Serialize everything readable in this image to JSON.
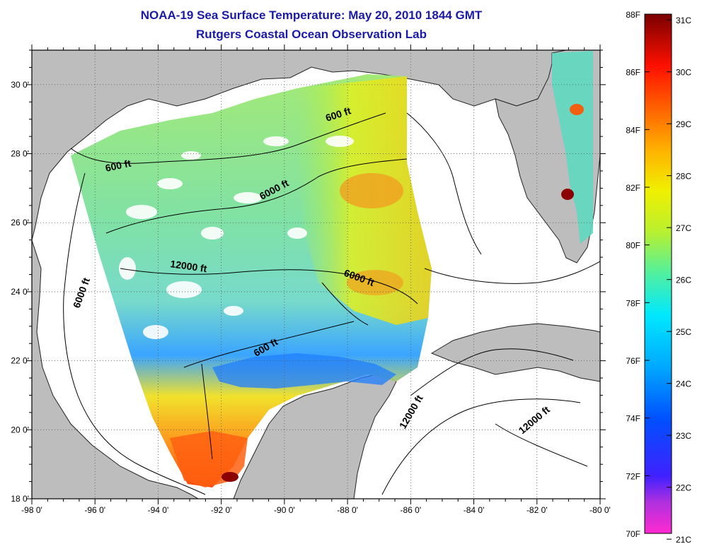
{
  "title": {
    "line1": "NOAA-19 Sea Surface Temperature:  May 20, 2010 1844 GMT",
    "line2": "Rutgers Coastal Ocean Observation Lab"
  },
  "map": {
    "lon_range": [
      -98,
      -80
    ],
    "lat_range": [
      18,
      31
    ],
    "lon_ticks": [
      "-98 0'",
      "-96 0'",
      "-94 0'",
      "-92 0'",
      "-90 0'",
      "-88 0'",
      "-86 0'",
      "-84 0'",
      "-82 0'",
      "-80 0'"
    ],
    "lat_ticks": [
      "18 0'",
      "20 0'",
      "22 0'",
      "24 0'",
      "26 0'",
      "28 0'",
      "30 0'"
    ],
    "grid": "dotted",
    "land_color": "#bdbdbd",
    "no_data_color": "#ffffff",
    "contour_labels": [
      "600 ft",
      "600 ft",
      "6000 ft",
      "6000 ft",
      "12000 ft",
      "6000 ft",
      "600 ft",
      "12000 ft",
      "12000 ft"
    ]
  },
  "colorbar": {
    "fahrenheit_labels": [
      "88F",
      "86F",
      "84F",
      "82F",
      "80F",
      "78F",
      "76F",
      "74F",
      "72F",
      "70F"
    ],
    "celsius_labels": [
      "31C",
      "30C",
      "29C",
      "28C",
      "27C",
      "26C",
      "25C",
      "24C",
      "23C",
      "22C",
      "21C"
    ],
    "colors": [
      "#ff2ad0",
      "#8a2be2",
      "#1a1aff",
      "#0078ff",
      "#00d8ff",
      "#3ee6b8",
      "#9ef04a",
      "#e8f000",
      "#ffb400",
      "#ff5a00",
      "#ff0000",
      "#8b0000"
    ]
  }
}
